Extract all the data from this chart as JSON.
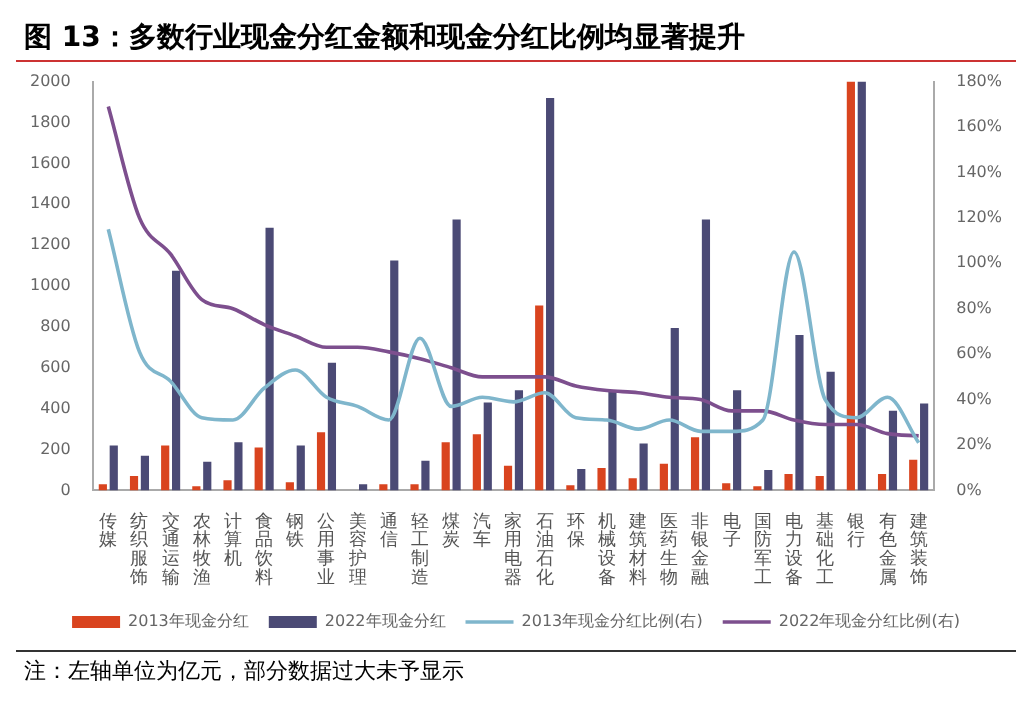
{
  "chart_data": {
    "type": "bar",
    "title": "图 13：多数行业现金分红金额和现金分红比例均显著提升",
    "categories": [
      "传媒",
      "纺织服饰",
      "交通运输",
      "农林牧渔",
      "计算机",
      "食品饮料",
      "钢铁",
      "公用事业",
      "美容护理",
      "通信",
      "轻工制造",
      "煤炭",
      "汽车",
      "家用电器",
      "石油石化",
      "环保",
      "机械设备",
      "建筑材料",
      "医药生物",
      "非银金融",
      "电子",
      "国防军工",
      "电力设备",
      "基础化工",
      "银行",
      "有色金属",
      "建筑装饰"
    ],
    "series": [
      {
        "name": "2013年现金分红",
        "type": "bar",
        "color": "#d9441f",
        "values": [
          30,
          70,
          220,
          20,
          50,
          210,
          40,
          285,
          0,
          30,
          30,
          235,
          275,
          120,
          905,
          25,
          110,
          60,
          130,
          260,
          35,
          20,
          80,
          70,
          2000,
          80,
          150
        ]
      },
      {
        "name": "2022年现金分红",
        "type": "bar",
        "color": "#4b4a75",
        "values": [
          220,
          170,
          1075,
          140,
          235,
          1285,
          220,
          625,
          30,
          1125,
          145,
          1325,
          430,
          490,
          1920,
          105,
          490,
          230,
          795,
          1325,
          490,
          100,
          760,
          580,
          2000,
          390,
          425
        ]
      },
      {
        "name": "2013年现金分红比例(右)",
        "type": "line",
        "axis": "y2",
        "color": "#7fb6cc",
        "values": [
          115,
          61,
          48,
          32,
          31,
          45,
          53,
          41,
          37,
          31,
          67,
          37,
          41,
          39,
          43,
          32,
          31,
          27,
          31,
          26,
          26,
          31,
          105,
          40,
          32,
          41,
          21
        ]
      },
      {
        "name": "2022年现金分红比例(右)",
        "type": "line",
        "axis": "y2",
        "color": "#7d4f8e",
        "values": [
          169,
          120,
          104,
          84,
          80,
          73,
          68,
          63,
          63,
          61,
          58,
          54,
          50,
          50,
          50,
          46,
          44,
          43,
          41,
          40,
          35,
          35,
          31,
          29,
          29,
          25,
          24
        ]
      }
    ],
    "ylim": [
      0,
      2000
    ],
    "yticks": [
      0,
      200,
      400,
      600,
      800,
      1000,
      1200,
      1400,
      1600,
      1800,
      2000
    ],
    "y2lim": [
      0,
      180
    ],
    "y2ticks": [
      {
        "value": 0,
        "label": "0%"
      },
      {
        "value": 20,
        "label": "20%"
      },
      {
        "value": 40,
        "label": "40%"
      },
      {
        "value": 60,
        "label": "60%"
      },
      {
        "value": 80,
        "label": "80%"
      },
      {
        "value": 100,
        "label": "100%"
      },
      {
        "value": 120,
        "label": "120%"
      },
      {
        "value": 140,
        "label": "140%"
      },
      {
        "value": 160,
        "label": "160%"
      },
      {
        "value": 180,
        "label": "180%"
      }
    ],
    "grid": false,
    "legend": "bottom",
    "marker": "none",
    "line_style": "solid",
    "annotations": [
      "注：左轴单位为亿元，部分数据过大未予显示"
    ]
  }
}
